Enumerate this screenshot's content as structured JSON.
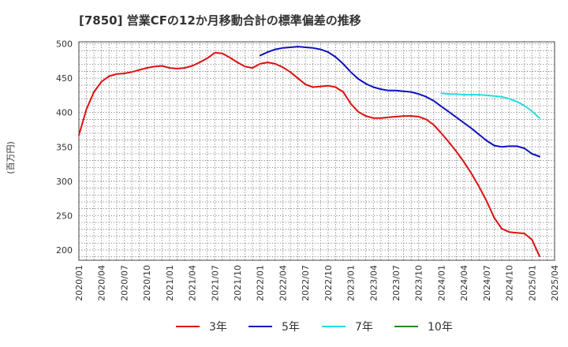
{
  "chart_data": {
    "type": "line",
    "title": "[7850]  営業CFの12か月移動合計の標準偏差の推移",
    "ylabel": "(百万円)",
    "xlabel": "",
    "ylim": [
      185,
      503
    ],
    "yticks": [
      200,
      250,
      300,
      350,
      400,
      450,
      500
    ],
    "xlim": [
      "2020-01",
      "2025-04"
    ],
    "xtick_labels": [
      "2020/01",
      "2020/04",
      "2020/07",
      "2020/10",
      "2021/01",
      "2021/04",
      "2021/07",
      "2021/10",
      "2022/01",
      "2022/04",
      "2022/07",
      "2022/10",
      "2023/01",
      "2023/04",
      "2023/07",
      "2023/10",
      "2024/01",
      "2024/04",
      "2024/07",
      "2024/10",
      "2025/01",
      "2025/04"
    ],
    "grid": true,
    "legend_position": "bottom",
    "series": [
      {
        "name": "3年",
        "color": "#dd1111",
        "points": [
          [
            "2020-01",
            367
          ],
          [
            "2020-02",
            405
          ],
          [
            "2020-03",
            430
          ],
          [
            "2020-04",
            445
          ],
          [
            "2020-05",
            453
          ],
          [
            "2020-06",
            456
          ],
          [
            "2020-07",
            457
          ],
          [
            "2020-08",
            459
          ],
          [
            "2020-09",
            462
          ],
          [
            "2020-10",
            465
          ],
          [
            "2020-11",
            467
          ],
          [
            "2020-12",
            468
          ],
          [
            "2021-01",
            465
          ],
          [
            "2021-02",
            464
          ],
          [
            "2021-03",
            465
          ],
          [
            "2021-04",
            468
          ],
          [
            "2021-05",
            473
          ],
          [
            "2021-06",
            479
          ],
          [
            "2021-07",
            487
          ],
          [
            "2021-08",
            486
          ],
          [
            "2021-09",
            480
          ],
          [
            "2021-10",
            473
          ],
          [
            "2021-11",
            467
          ],
          [
            "2021-12",
            465
          ],
          [
            "2022-01",
            471
          ],
          [
            "2022-02",
            473
          ],
          [
            "2022-03",
            471
          ],
          [
            "2022-04",
            466
          ],
          [
            "2022-05",
            459
          ],
          [
            "2022-06",
            450
          ],
          [
            "2022-07",
            441
          ],
          [
            "2022-08",
            437
          ],
          [
            "2022-09",
            438
          ],
          [
            "2022-10",
            439
          ],
          [
            "2022-11",
            437
          ],
          [
            "2022-12",
            430
          ],
          [
            "2023-01",
            413
          ],
          [
            "2023-02",
            401
          ],
          [
            "2023-03",
            395
          ],
          [
            "2023-04",
            392
          ],
          [
            "2023-05",
            392
          ],
          [
            "2023-06",
            393
          ],
          [
            "2023-07",
            394
          ],
          [
            "2023-08",
            395
          ],
          [
            "2023-09",
            395
          ],
          [
            "2023-10",
            394
          ],
          [
            "2023-11",
            390
          ],
          [
            "2023-12",
            382
          ],
          [
            "2024-01",
            370
          ],
          [
            "2024-02",
            357
          ],
          [
            "2024-03",
            343
          ],
          [
            "2024-04",
            328
          ],
          [
            "2024-05",
            311
          ],
          [
            "2024-06",
            292
          ],
          [
            "2024-07",
            271
          ],
          [
            "2024-08",
            247
          ],
          [
            "2024-09",
            231
          ],
          [
            "2024-10",
            226
          ],
          [
            "2024-11",
            225
          ],
          [
            "2024-12",
            224
          ],
          [
            "2025-01",
            215
          ],
          [
            "2025-02",
            191
          ]
        ]
      },
      {
        "name": "5年",
        "color": "#1111bb",
        "points": [
          [
            "2022-01",
            483
          ],
          [
            "2022-02",
            488
          ],
          [
            "2022-03",
            492
          ],
          [
            "2022-04",
            494
          ],
          [
            "2022-05",
            495
          ],
          [
            "2022-06",
            496
          ],
          [
            "2022-07",
            495
          ],
          [
            "2022-08",
            494
          ],
          [
            "2022-09",
            492
          ],
          [
            "2022-10",
            488
          ],
          [
            "2022-11",
            481
          ],
          [
            "2022-12",
            471
          ],
          [
            "2023-01",
            459
          ],
          [
            "2023-02",
            449
          ],
          [
            "2023-03",
            442
          ],
          [
            "2023-04",
            437
          ],
          [
            "2023-05",
            434
          ],
          [
            "2023-06",
            432
          ],
          [
            "2023-07",
            432
          ],
          [
            "2023-08",
            431
          ],
          [
            "2023-09",
            430
          ],
          [
            "2023-10",
            427
          ],
          [
            "2023-11",
            423
          ],
          [
            "2023-12",
            417
          ],
          [
            "2024-01",
            409
          ],
          [
            "2024-02",
            401
          ],
          [
            "2024-03",
            393
          ],
          [
            "2024-04",
            385
          ],
          [
            "2024-05",
            377
          ],
          [
            "2024-06",
            368
          ],
          [
            "2024-07",
            359
          ],
          [
            "2024-08",
            352
          ],
          [
            "2024-09",
            350
          ],
          [
            "2024-10",
            351
          ],
          [
            "2024-11",
            351
          ],
          [
            "2024-12",
            348
          ],
          [
            "2025-01",
            340
          ],
          [
            "2025-02",
            336
          ]
        ]
      },
      {
        "name": "7年",
        "color": "#22dddd",
        "points": [
          [
            "2024-01",
            428
          ],
          [
            "2024-02",
            427
          ],
          [
            "2024-03",
            427
          ],
          [
            "2024-04",
            426
          ],
          [
            "2024-05",
            426
          ],
          [
            "2024-06",
            426
          ],
          [
            "2024-07",
            425
          ],
          [
            "2024-08",
            424
          ],
          [
            "2024-09",
            423
          ],
          [
            "2024-10",
            420
          ],
          [
            "2024-11",
            416
          ],
          [
            "2024-12",
            410
          ],
          [
            "2025-01",
            402
          ],
          [
            "2025-02",
            392
          ]
        ]
      },
      {
        "name": "10年",
        "color": "#228822",
        "points": []
      }
    ]
  }
}
